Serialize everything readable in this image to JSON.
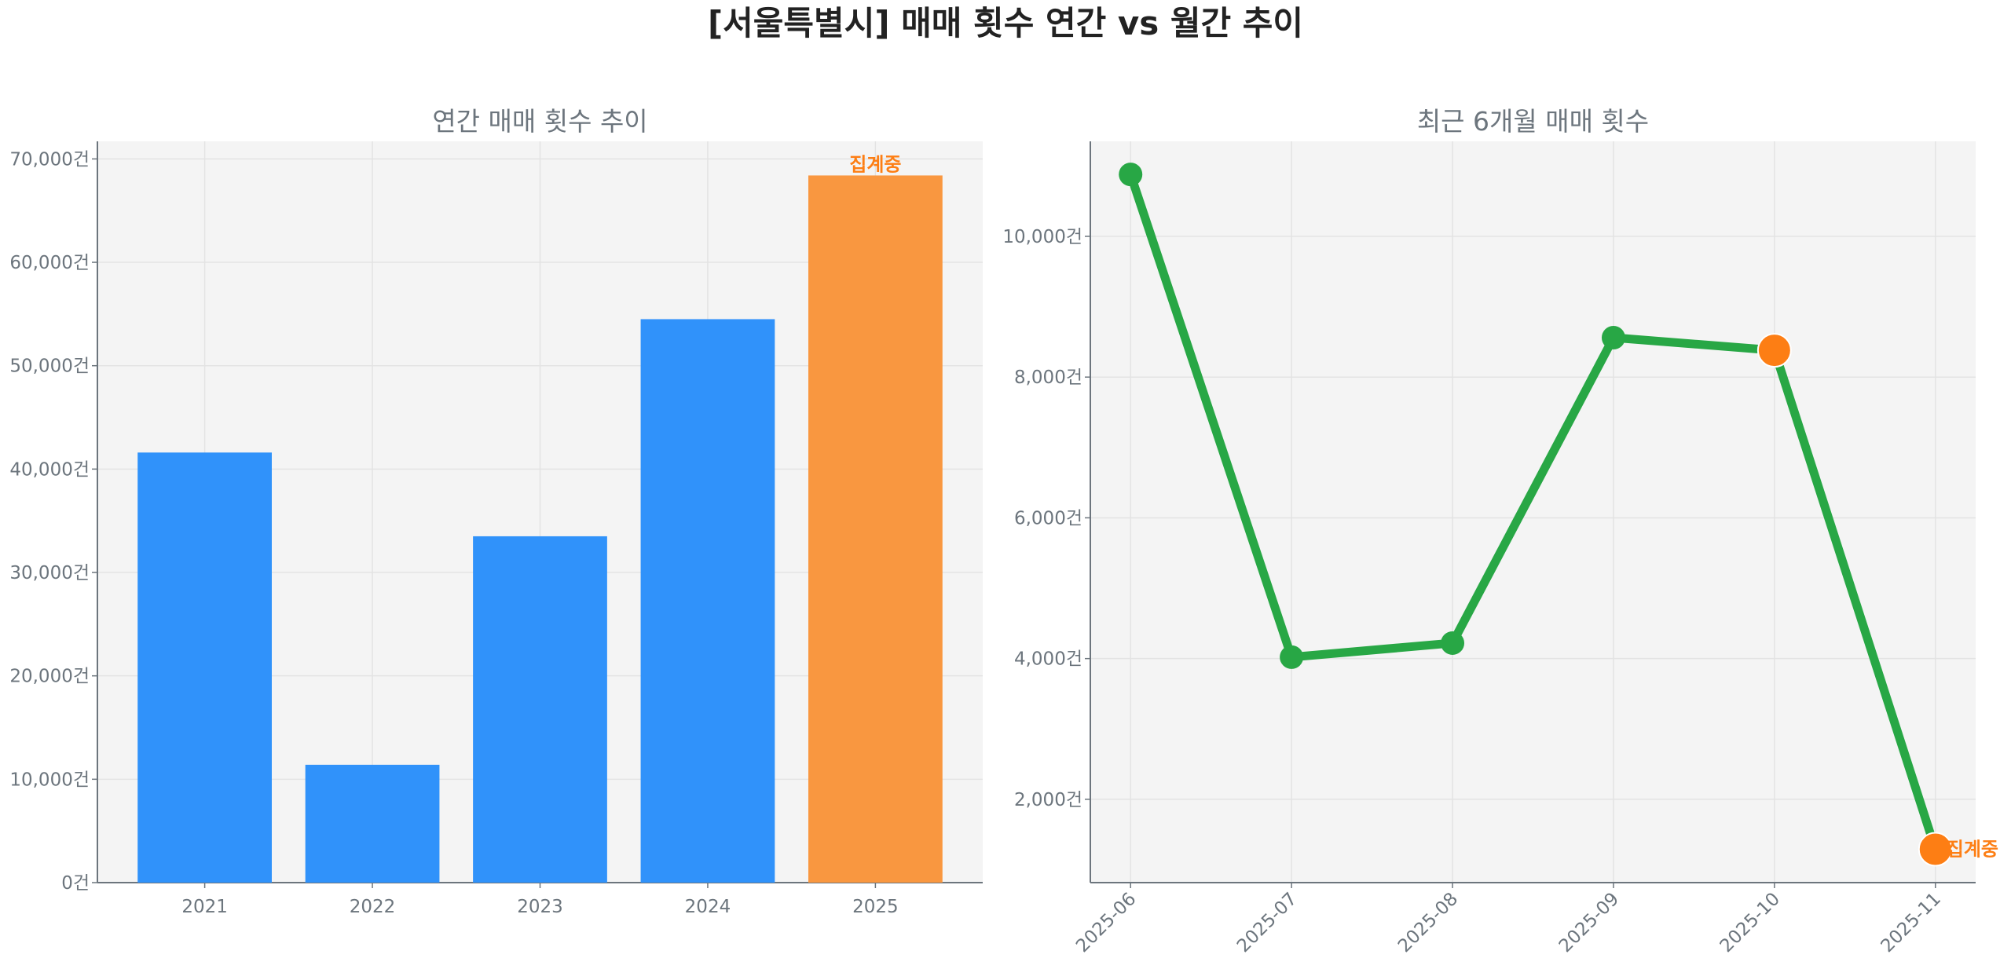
{
  "title": "[서울특별시] 매매 횟수 연간 vs 월간 추이",
  "chart_data": [
    {
      "type": "bar",
      "title": "연간 매매 횟수 추이",
      "categories": [
        "2021",
        "2022",
        "2023",
        "2024",
        "2025"
      ],
      "values": [
        41600,
        11400,
        33500,
        54500,
        68400
      ],
      "bar_colors": [
        "#3092fa",
        "#3092fa",
        "#3092fa",
        "#3092fa",
        "#f99740"
      ],
      "annotations": [
        {
          "category": "2025",
          "text": "집계중"
        }
      ],
      "ylim": [
        0,
        71700
      ],
      "yticks": [
        0,
        10000,
        20000,
        30000,
        40000,
        50000,
        60000,
        70000
      ],
      "ytick_labels": [
        "0건",
        "10,000건",
        "20,000건",
        "30,000건",
        "40,000건",
        "50,000건",
        "60,000건",
        "70,000건"
      ],
      "grid": true,
      "background": "#f4f4f4"
    },
    {
      "type": "line",
      "title": "최근 6개월 매매 횟수",
      "x": [
        "2025-06",
        "2025-07",
        "2025-08",
        "2025-09",
        "2025-10",
        "2025-11"
      ],
      "values": [
        10880,
        4020,
        4220,
        8560,
        8380,
        1290
      ],
      "line_color": "#28a745",
      "highlight_color": "#fd7e14",
      "highlighted": [
        "2025-10",
        "2025-11"
      ],
      "annotations": [
        {
          "x": "2025-11",
          "text": "집계중"
        }
      ],
      "ylim": [
        816,
        11350
      ],
      "yticks": [
        2000,
        4000,
        6000,
        8000,
        10000
      ],
      "ytick_labels": [
        "2,000건",
        "4,000건",
        "6,000건",
        "8,000건",
        "10,000건"
      ],
      "xtick_rotation": 45,
      "grid": true,
      "background": "#f4f4f4"
    }
  ]
}
